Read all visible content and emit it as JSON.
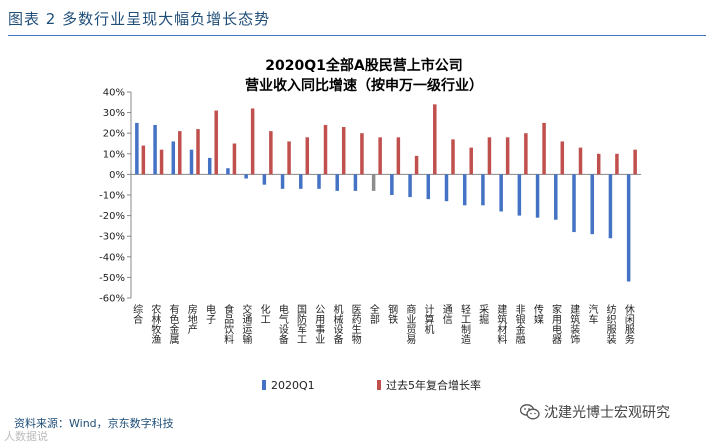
{
  "figure_title": "图表 2 多数行业呈现大幅负增长态势",
  "source_note": "资料来源：Wind，京东数字科技",
  "watermark_text": "沈建光博士宏观研究",
  "corner_logo_text": "人数据说",
  "colors": {
    "q1": "#4472c4",
    "avg5y": "#c0504d",
    "gray": "#8c8c8c"
  },
  "chart_data": {
    "type": "bar",
    "title": [
      "2020Q1全部A股民营上市公司",
      "营业收入同比增速（按申万一级行业）"
    ],
    "ylim": [
      -60,
      40
    ],
    "yticks": [
      40,
      30,
      20,
      10,
      0,
      -10,
      -20,
      -30,
      -40,
      -50,
      -60
    ],
    "ytick_labels": [
      "40%",
      "30%",
      "20%",
      "10%",
      "0%",
      "-10%",
      "-20%",
      "-30%",
      "-40%",
      "-50%",
      "-60%"
    ],
    "categories": [
      "综合",
      "农林牧渔",
      "有色金属",
      "房地产",
      "电子",
      "食品饮料",
      "交通运输",
      "化工",
      "电气设备",
      "国防军工",
      "公用事业",
      "机械设备",
      "医药生物",
      "全部",
      "钢铁",
      "商业贸易",
      "计算机",
      "通信",
      "轻工制造",
      "采掘",
      "建筑材料",
      "非银金融",
      "传媒",
      "家用电器",
      "建筑装饰",
      "汽车",
      "纺织服装",
      "休闲服务"
    ],
    "highlight_category": "全部",
    "series": [
      {
        "name": "2020Q1",
        "values": [
          25,
          24,
          16,
          12,
          8,
          3,
          -2,
          -5,
          -7,
          -7,
          -7,
          -8,
          -8,
          -8,
          -10,
          -11,
          -12,
          -13,
          -15,
          -15,
          -18,
          -20,
          -21,
          -22,
          -28,
          -29,
          -31,
          -52
        ]
      },
      {
        "name": "过去5年复合增长率",
        "values": [
          14,
          12,
          21,
          22,
          31,
          15,
          32,
          21,
          16,
          18,
          24,
          23,
          20,
          18,
          18,
          9,
          34,
          17,
          13,
          18,
          18,
          20,
          25,
          16,
          13,
          10,
          10,
          12
        ]
      }
    ]
  }
}
